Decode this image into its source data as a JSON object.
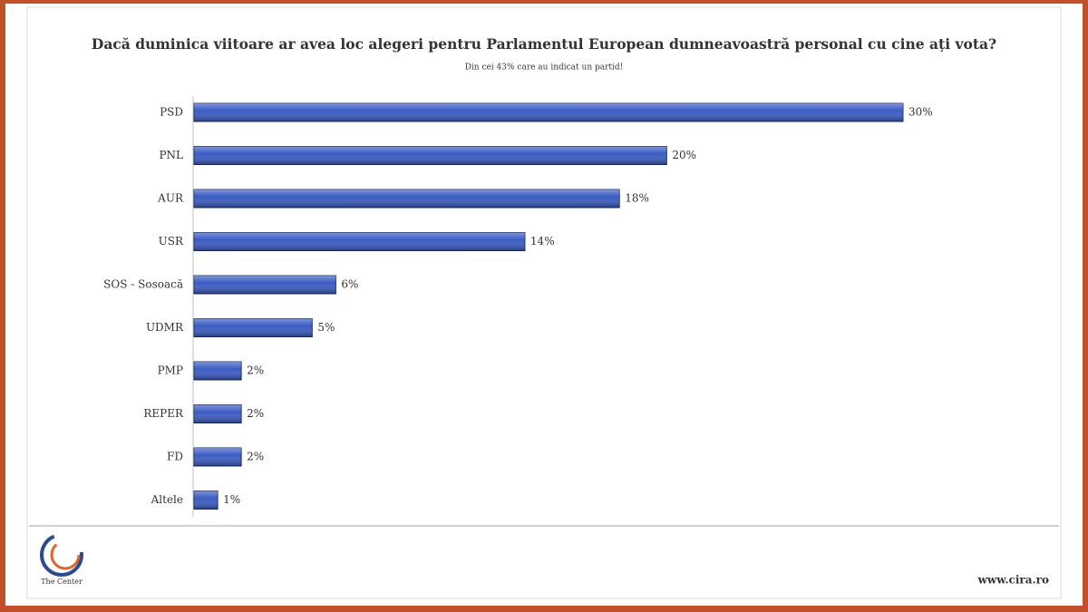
{
  "chart_data": {
    "type": "bar",
    "orientation": "horizontal",
    "title": "Dacă duminica viitoare ar avea loc alegeri pentru Parlamentul European dumneavoastră personal cu cine ați vota?",
    "subtitle": "Din cei 43% care au indicat un partid!",
    "categories": [
      "PSD",
      "PNL",
      "AUR",
      "USR",
      "SOS - Sosoacă",
      "UDMR",
      "PMP",
      "REPER",
      "FD",
      "Altele"
    ],
    "values": [
      30,
      20,
      18,
      14,
      6,
      5,
      2,
      2,
      2,
      1
    ],
    "value_labels": [
      "30%",
      "20%",
      "18%",
      "14%",
      "6%",
      "5%",
      "2%",
      "2%",
      "2%",
      "1%"
    ],
    "color": "#3b5cc4"
  },
  "footer": {
    "logo_text": "The Center",
    "website": "www.cira.ro"
  }
}
